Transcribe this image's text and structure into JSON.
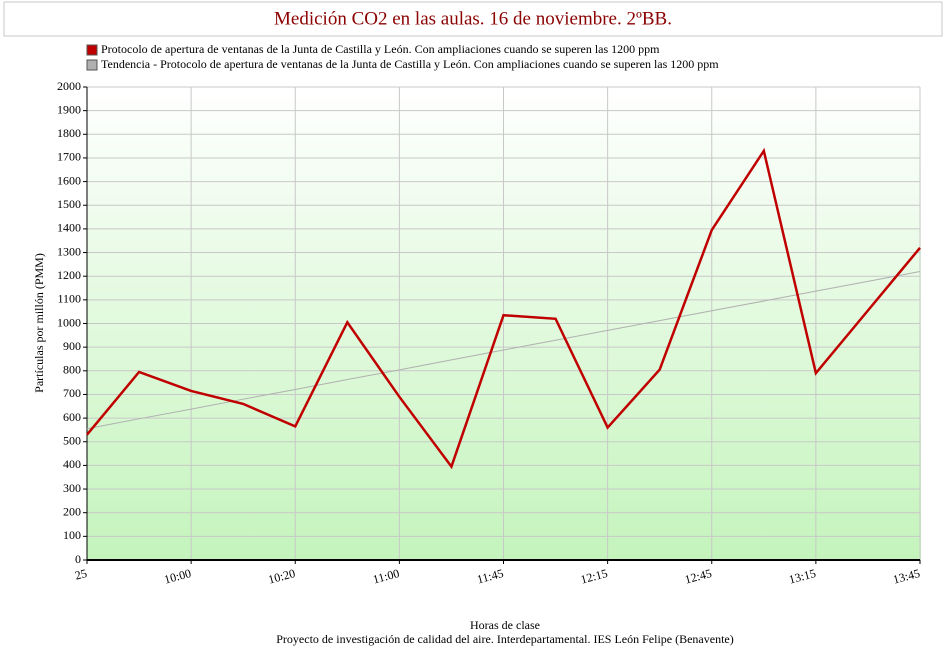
{
  "chart_data": {
    "type": "line",
    "title": "Medición CO2 en las aulas. 16 de noviembre. 2ºBB.",
    "x_label": "Horas de clase",
    "y_label": "Partículas por millón (PMM)",
    "caption": "Proyecto de investigación de calidad del aire. Interdepartamental. IES León Felipe (Benavente)",
    "categories": [
      "25",
      null,
      "10:00",
      null,
      "10:20",
      null,
      "11:00",
      null,
      "11:45",
      null,
      "12:15",
      null,
      "12:45",
      null,
      "13:15",
      null,
      "13:45"
    ],
    "series": [
      {
        "name": "Protocolo de apertura de ventanas de la Junta de Castilla y León. Con ampliaciones cuando se superen las 1200 ppm",
        "color": "#c00000",
        "values": [
          530,
          795,
          715,
          660,
          565,
          1005,
          690,
          395,
          1035,
          1020,
          560,
          805,
          1395,
          1730,
          790,
          1055,
          1320
        ]
      },
      {
        "name": "Tendencia - Protocolo de apertura de ventanas de la Junta de Castilla y León. Con ampliaciones cuando se superen las 1200 ppm",
        "color": "#b0b0b0",
        "values": [
          555,
          597,
          638,
          680,
          721,
          763,
          804,
          846,
          888,
          929,
          971,
          1012,
          1054,
          1095,
          1137,
          1178,
          1220
        ]
      }
    ],
    "ylim": [
      0,
      2000
    ],
    "yticks": [
      0,
      100,
      200,
      300,
      400,
      500,
      600,
      700,
      800,
      900,
      1000,
      1100,
      1200,
      1300,
      1400,
      1500,
      1600,
      1700,
      1800,
      1900,
      2000
    ],
    "grid": true
  }
}
